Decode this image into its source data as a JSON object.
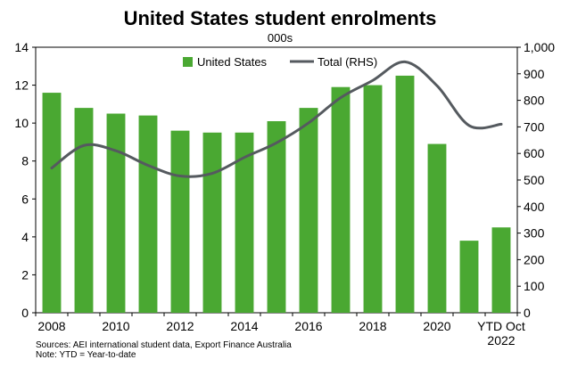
{
  "chart_data": {
    "type": "bar",
    "title": "United States student enrolments",
    "subtitle": "000s",
    "categories": [
      "2008",
      "2009",
      "2010",
      "2011",
      "2012",
      "2013",
      "2014",
      "2015",
      "2016",
      "2017",
      "2018",
      "2019",
      "2020",
      "2021",
      "YTD Oct 2022"
    ],
    "x_tick_labels": [
      "2008",
      "",
      "2010",
      "",
      "2012",
      "",
      "2014",
      "",
      "2016",
      "",
      "2018",
      "",
      "2020",
      "",
      ""
    ],
    "last_tick_label": [
      "YTD Oct",
      "2022"
    ],
    "series": [
      {
        "name": "United States",
        "type": "bar",
        "axis": "left",
        "color": "#4aa832",
        "values": [
          11.6,
          10.8,
          10.5,
          10.4,
          9.6,
          9.5,
          9.5,
          10.1,
          10.8,
          11.9,
          12.0,
          12.5,
          8.9,
          3.8,
          4.5
        ]
      },
      {
        "name": "Total (RHS)",
        "type": "line",
        "axis": "right",
        "color": "#555a5f",
        "values": [
          545,
          630,
          610,
          555,
          515,
          525,
          585,
          640,
          715,
          810,
          875,
          945,
          855,
          705,
          710
        ]
      }
    ],
    "left_axis": {
      "min": 0,
      "max": 14,
      "step": 2,
      "labels": [
        "0",
        "2",
        "4",
        "6",
        "8",
        "10",
        "12",
        "14"
      ]
    },
    "right_axis": {
      "min": 0,
      "max": 1000,
      "step": 100,
      "labels": [
        "0",
        "100",
        "200",
        "300",
        "400",
        "500",
        "600",
        "700",
        "800",
        "900",
        "1,000"
      ]
    },
    "grid": false,
    "legend_position": "top-center"
  },
  "notes": {
    "sources": "Sources: AEI international student data, Export Finance Australia",
    "note": "Note: YTD = Year-to-date"
  }
}
